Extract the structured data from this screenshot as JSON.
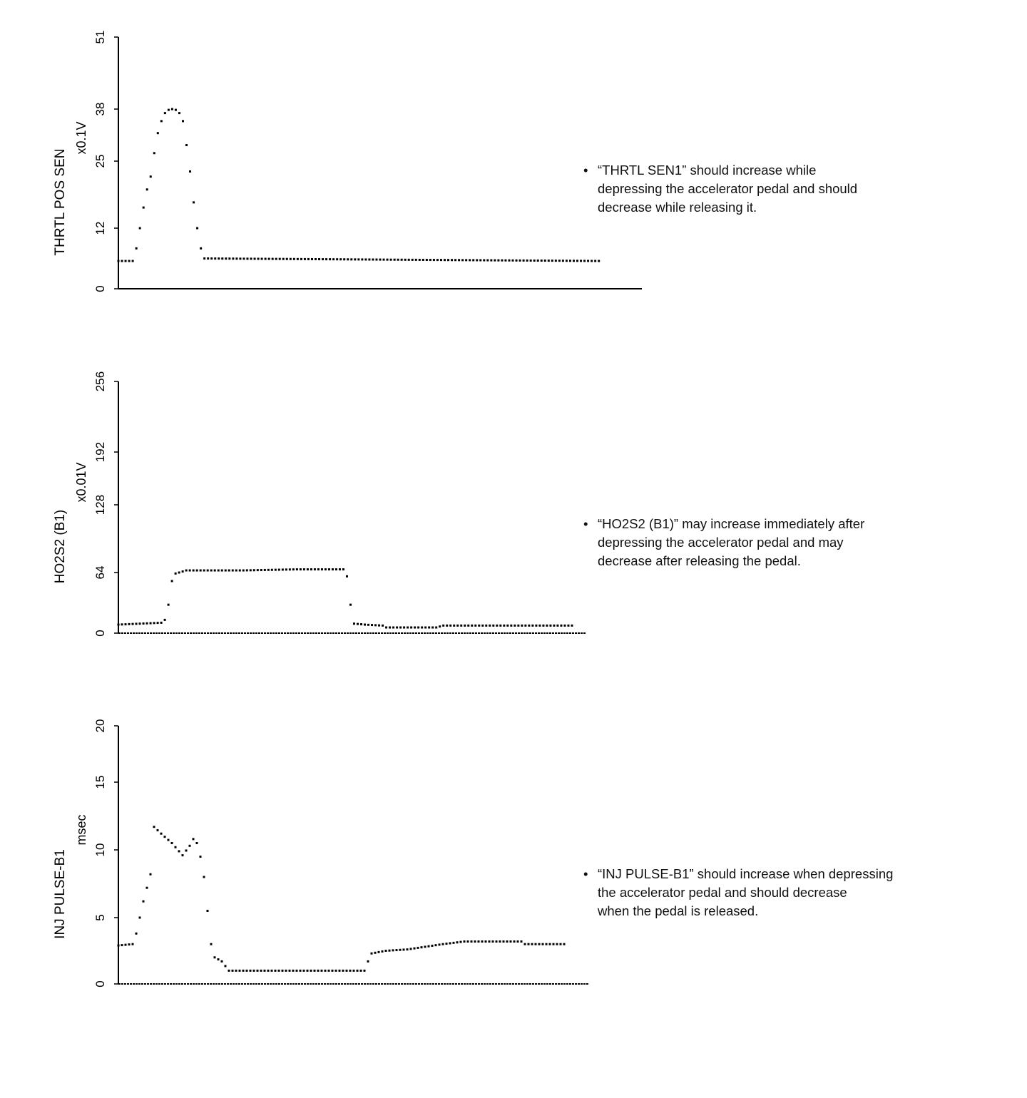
{
  "chart_data": [
    {
      "type": "scatter",
      "ylabel": "THRTL POS SEN",
      "unit": "x0.1V",
      "yticks": [
        0,
        12,
        25,
        38,
        51
      ],
      "ylim": [
        0,
        51
      ],
      "xlim": [
        0,
        146
      ],
      "points": [
        [
          0,
          5.5
        ],
        [
          4,
          5.5
        ],
        [
          5,
          8
        ],
        [
          6,
          12
        ],
        [
          7,
          16
        ],
        [
          8,
          19.5
        ],
        [
          9,
          22
        ],
        [
          10,
          27
        ],
        [
          11,
          32
        ],
        [
          12,
          35
        ],
        [
          13,
          37
        ],
        [
          14,
          37.8
        ],
        [
          15,
          38
        ],
        [
          16,
          37.8
        ],
        [
          17,
          37
        ],
        [
          18,
          35
        ],
        [
          19,
          29
        ],
        [
          20,
          23
        ],
        [
          21,
          17
        ],
        [
          22,
          12
        ],
        [
          23,
          8
        ],
        [
          24,
          6
        ],
        [
          134,
          5.5
        ]
      ],
      "note": [
        "“THRTL SEN1” should increase while",
        "depressing the accelerator pedal and should",
        "decrease while releasing it."
      ]
    },
    {
      "type": "scatter",
      "ylabel": "HO2S2 (B1)",
      "unit": "x0.01V",
      "yticks": [
        0,
        64,
        128,
        192,
        256
      ],
      "ylim": [
        0,
        256
      ],
      "xlim": [
        0,
        131
      ],
      "points": [
        [
          0,
          9
        ],
        [
          12,
          11
        ],
        [
          13,
          14
        ],
        [
          14,
          30
        ],
        [
          15,
          55
        ],
        [
          16,
          63
        ],
        [
          19,
          66
        ],
        [
          35,
          66
        ],
        [
          50,
          67
        ],
        [
          63,
          67
        ],
        [
          64,
          60
        ],
        [
          65,
          30
        ],
        [
          66,
          10
        ],
        [
          69,
          9
        ],
        [
          74,
          8
        ],
        [
          75,
          6
        ],
        [
          89,
          6
        ],
        [
          91,
          8
        ],
        [
          127,
          8
        ]
      ],
      "note": [
        "“HO2S2 (B1)” may increase immediately after",
        "depressing the accelerator pedal and may",
        "decrease after releasing the pedal."
      ]
    },
    {
      "type": "scatter",
      "ylabel": "INJ PULSE-B1",
      "unit": "msec",
      "yticks": [
        0,
        5,
        10,
        15,
        20
      ],
      "ylim": [
        0,
        20
      ],
      "xlim": [
        0,
        132
      ],
      "points": [
        [
          0,
          2.9
        ],
        [
          4,
          3
        ],
        [
          5,
          3.8
        ],
        [
          6,
          5
        ],
        [
          7,
          6.2
        ],
        [
          8,
          7.2
        ],
        [
          9,
          8.2
        ],
        [
          10,
          11.7
        ],
        [
          12,
          11.2
        ],
        [
          15,
          10.5
        ],
        [
          18,
          9.6
        ],
        [
          20,
          10.3
        ],
        [
          21,
          10.8
        ],
        [
          22,
          10.5
        ],
        [
          23,
          9.5
        ],
        [
          24,
          8
        ],
        [
          25,
          5.5
        ],
        [
          26,
          3
        ],
        [
          27,
          2
        ],
        [
          29,
          1.7
        ],
        [
          31,
          1
        ],
        [
          69,
          1
        ],
        [
          70,
          1.7
        ],
        [
          71,
          2.3
        ],
        [
          75,
          2.5
        ],
        [
          81,
          2.6
        ],
        [
          86,
          2.8
        ],
        [
          91,
          3
        ],
        [
          97,
          3.2
        ],
        [
          113,
          3.2
        ],
        [
          114,
          3
        ],
        [
          125,
          3
        ]
      ],
      "note": [
        "“INJ PULSE-B1” should increase when depressing",
        "the accelerator pedal and should decrease",
        "when the pedal is released."
      ]
    }
  ],
  "bullet": "•"
}
